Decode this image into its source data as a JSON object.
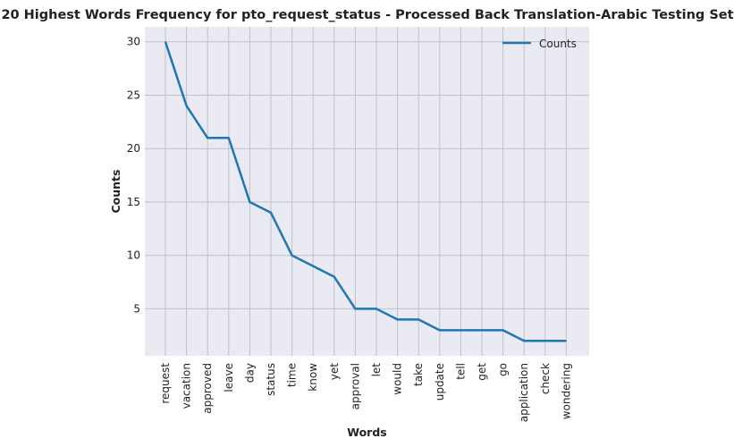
{
  "chart_data": {
    "type": "line",
    "title": "20 Highest Words Frequency for pto_request_status - Processed Back Translation-Arabic Testing Set",
    "xlabel": "Words",
    "ylabel": "Counts",
    "categories": [
      "request",
      "vacation",
      "approved",
      "leave",
      "day",
      "status",
      "time",
      "know",
      "yet",
      "approval",
      "let",
      "would",
      "take",
      "update",
      "tell",
      "get",
      "go",
      "application",
      "check",
      "wondering"
    ],
    "series": [
      {
        "name": "Counts",
        "values": [
          30,
          24,
          21,
          21,
          15,
          14,
          10,
          9,
          8,
          5,
          5,
          4,
          4,
          3,
          3,
          3,
          3,
          2,
          2,
          2
        ]
      }
    ],
    "ylim": [
      0.6,
      31.4
    ],
    "yticks": [
      5,
      10,
      15,
      20,
      25,
      30
    ],
    "grid": true,
    "legend": "top-right",
    "colors": {
      "line": "#1f77b4",
      "plot_bg": "#eaeaf2",
      "grid": "#c0c0c8"
    }
  }
}
